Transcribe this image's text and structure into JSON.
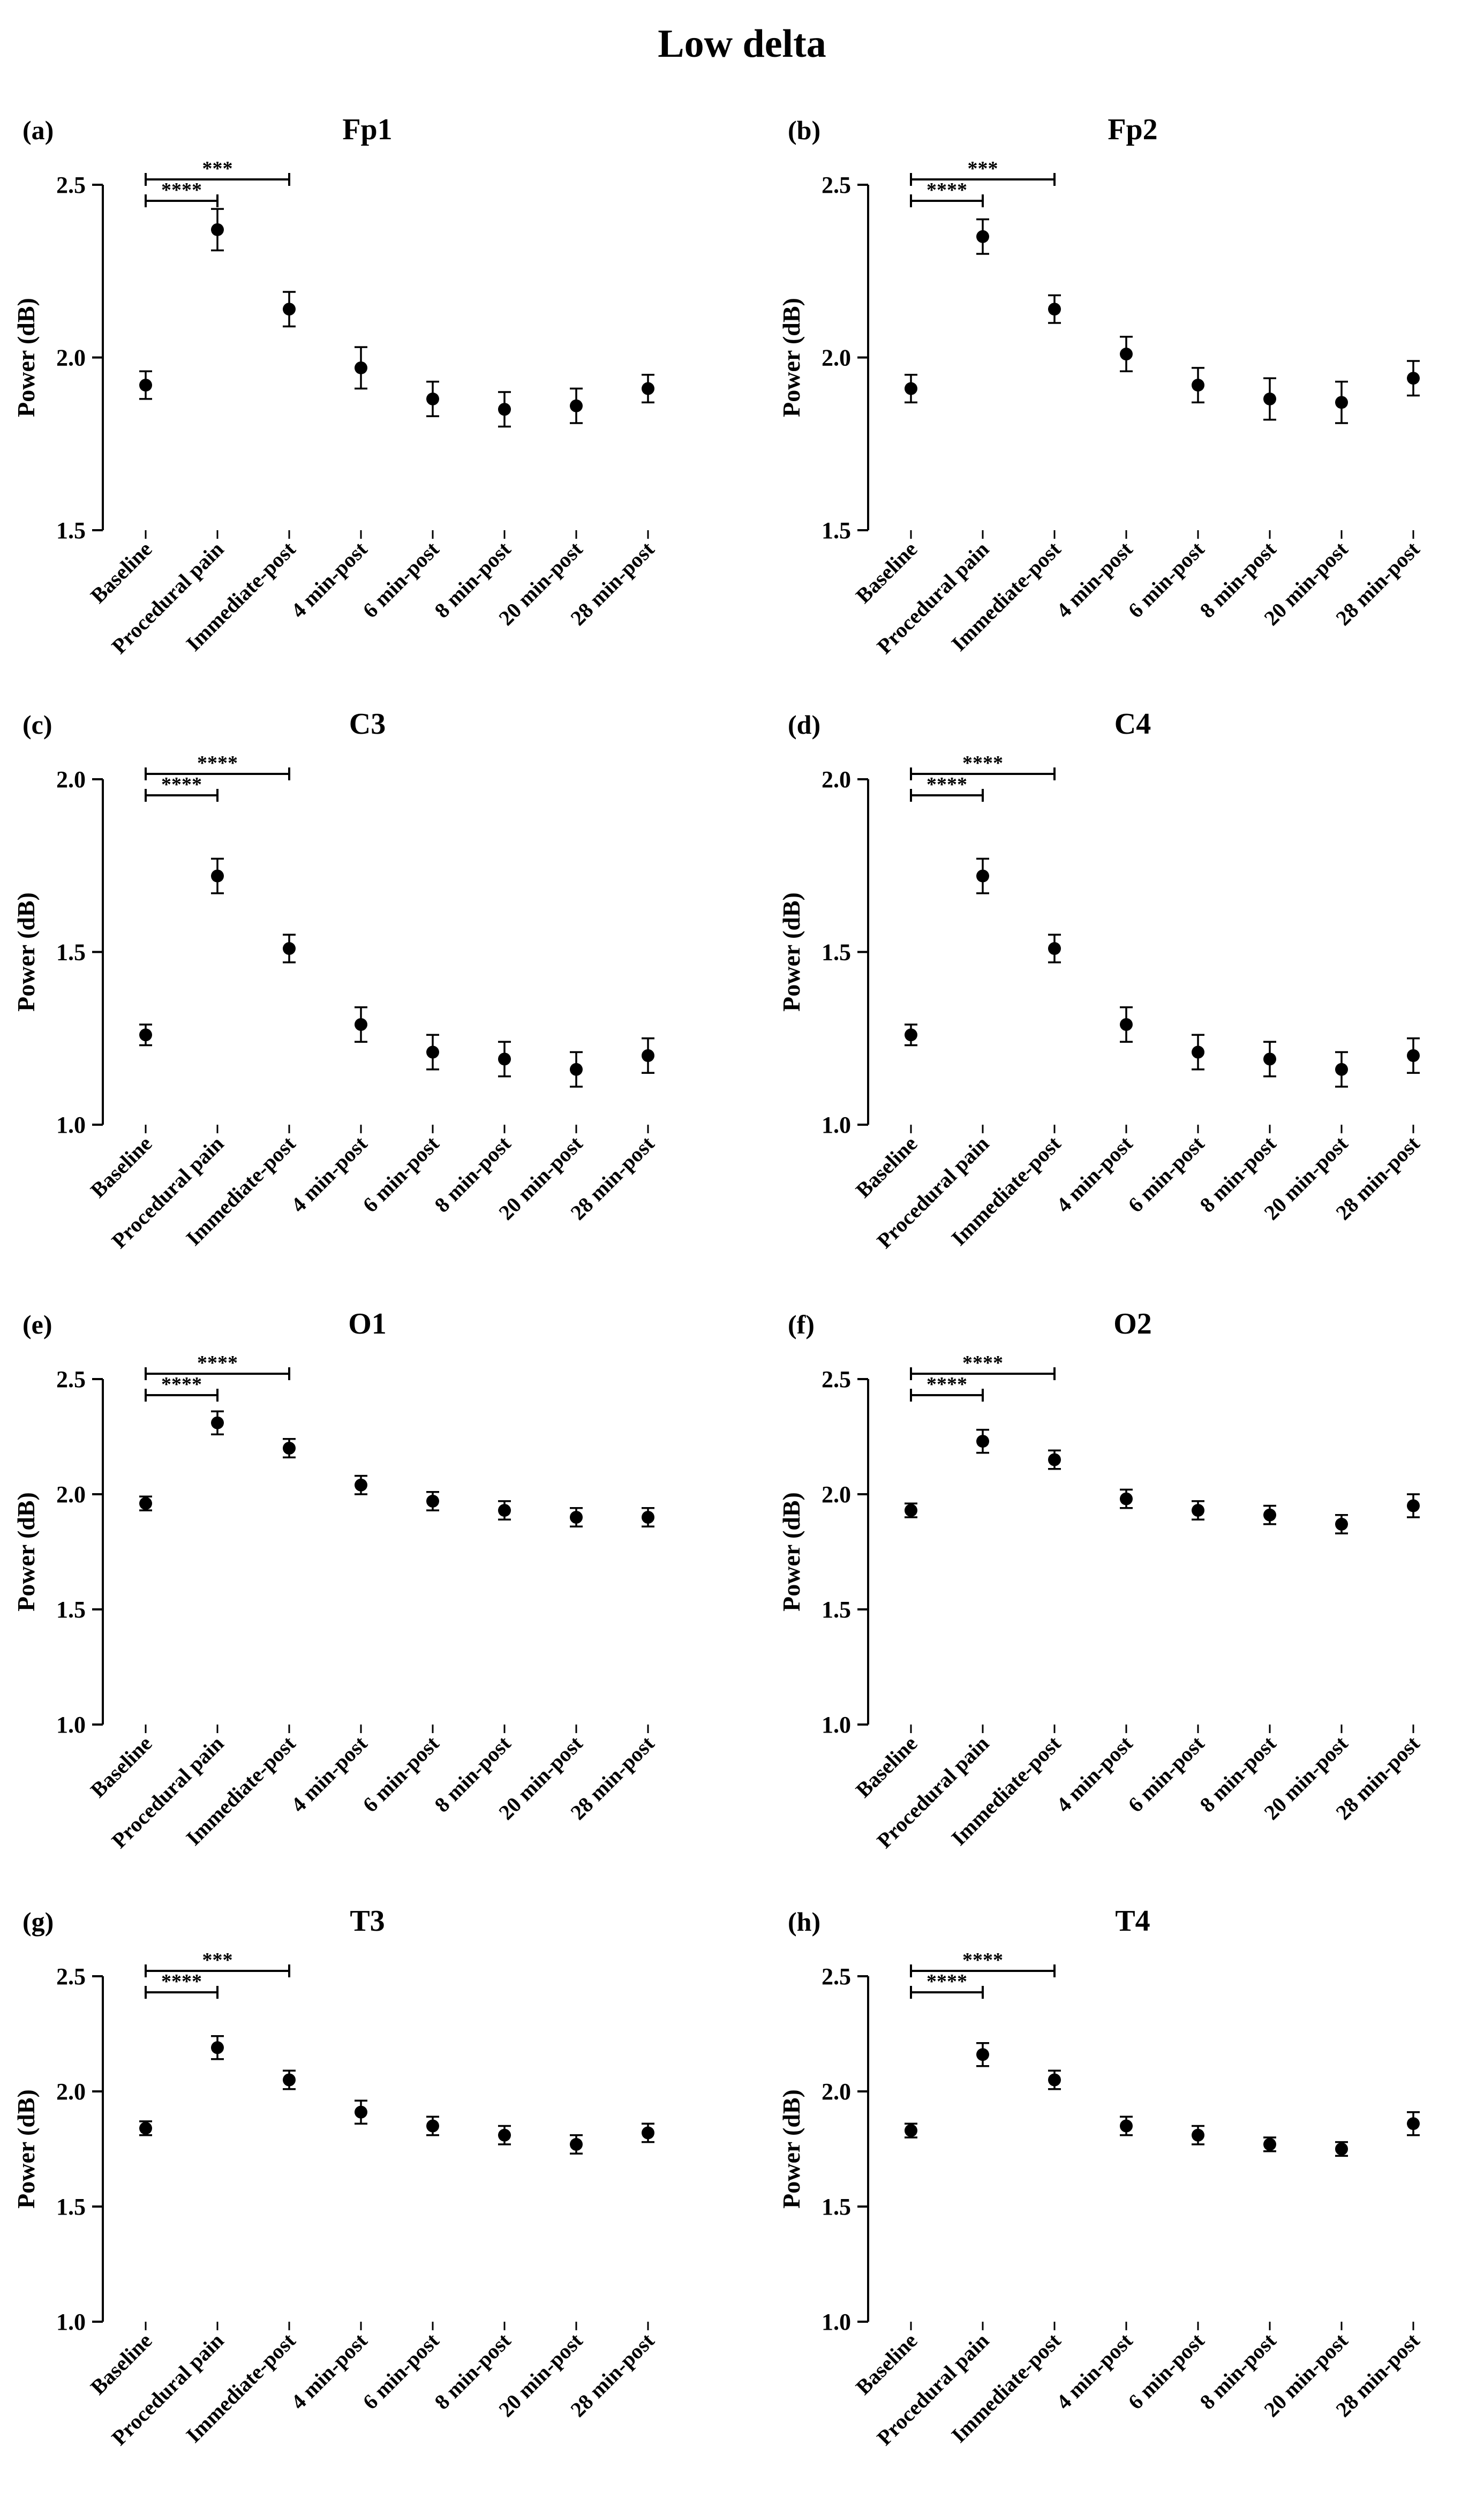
{
  "title": "Low delta",
  "chart_data": [
    {
      "type": "scatter",
      "panel_label": "(a)",
      "title": "Fp1",
      "ylabel": "Power (dB)",
      "xlabel": "",
      "ylim": [
        1.5,
        2.5
      ],
      "yticks": [
        "1.5",
        "2.0",
        "2.5"
      ],
      "categories": [
        "Baseline",
        "Procedural pain",
        "Immediate-post",
        "4 min-post",
        "6 min-post",
        "8 min-post",
        "20 min-post",
        "28 min-post"
      ],
      "values": [
        1.92,
        2.37,
        2.14,
        1.97,
        1.88,
        1.85,
        1.86,
        1.91
      ],
      "error": [
        0.04,
        0.06,
        0.05,
        0.06,
        0.05,
        0.05,
        0.05,
        0.04
      ],
      "significance": [
        {
          "from": 0,
          "to": 1,
          "label": "****"
        },
        {
          "from": 0,
          "to": 2,
          "label": "***"
        }
      ]
    },
    {
      "type": "scatter",
      "panel_label": "(b)",
      "title": "Fp2",
      "ylabel": "Power (dB)",
      "xlabel": "",
      "ylim": [
        1.5,
        2.5
      ],
      "yticks": [
        "1.5",
        "2.0",
        "2.5"
      ],
      "categories": [
        "Baseline",
        "Procedural pain",
        "Immediate-post",
        "4 min-post",
        "6 min-post",
        "8 min-post",
        "20 min-post",
        "28 min-post"
      ],
      "values": [
        1.91,
        2.35,
        2.14,
        2.01,
        1.92,
        1.88,
        1.87,
        1.94
      ],
      "error": [
        0.04,
        0.05,
        0.04,
        0.05,
        0.05,
        0.06,
        0.06,
        0.05
      ],
      "significance": [
        {
          "from": 0,
          "to": 1,
          "label": "****"
        },
        {
          "from": 0,
          "to": 2,
          "label": "***"
        }
      ]
    },
    {
      "type": "scatter",
      "panel_label": "(c)",
      "title": "C3",
      "ylabel": "Power (dB)",
      "xlabel": "",
      "ylim": [
        1.0,
        2.0
      ],
      "yticks": [
        "1.0",
        "1.5",
        "2.0"
      ],
      "categories": [
        "Baseline",
        "Procedural pain",
        "Immediate-post",
        "4 min-post",
        "6 min-post",
        "8 min-post",
        "20 min-post",
        "28 min-post"
      ],
      "values": [
        1.26,
        1.72,
        1.51,
        1.29,
        1.21,
        1.19,
        1.16,
        1.2
      ],
      "error": [
        0.03,
        0.05,
        0.04,
        0.05,
        0.05,
        0.05,
        0.05,
        0.05
      ],
      "significance": [
        {
          "from": 0,
          "to": 1,
          "label": "****"
        },
        {
          "from": 0,
          "to": 2,
          "label": "****"
        }
      ]
    },
    {
      "type": "scatter",
      "panel_label": "(d)",
      "title": "C4",
      "ylabel": "Power (dB)",
      "xlabel": "",
      "ylim": [
        1.0,
        2.0
      ],
      "yticks": [
        "1.0",
        "1.5",
        "2.0"
      ],
      "categories": [
        "Baseline",
        "Procedural pain",
        "Immediate-post",
        "4 min-post",
        "6 min-post",
        "8 min-post",
        "20 min-post",
        "28 min-post"
      ],
      "values": [
        1.26,
        1.72,
        1.51,
        1.29,
        1.21,
        1.19,
        1.16,
        1.2
      ],
      "error": [
        0.03,
        0.05,
        0.04,
        0.05,
        0.05,
        0.05,
        0.05,
        0.05
      ],
      "significance": [
        {
          "from": 0,
          "to": 1,
          "label": "****"
        },
        {
          "from": 0,
          "to": 2,
          "label": "****"
        }
      ]
    },
    {
      "type": "scatter",
      "panel_label": "(e)",
      "title": "O1",
      "ylabel": "Power (dB)",
      "xlabel": "",
      "ylim": [
        1.0,
        2.5
      ],
      "yticks": [
        "1.0",
        "1.5",
        "2.0",
        "2.5"
      ],
      "categories": [
        "Baseline",
        "Procedural pain",
        "Immediate-post",
        "4 min-post",
        "6 min-post",
        "8 min-post",
        "20 min-post",
        "28 min-post"
      ],
      "values": [
        1.96,
        2.31,
        2.2,
        2.04,
        1.97,
        1.93,
        1.9,
        1.9
      ],
      "error": [
        0.03,
        0.05,
        0.04,
        0.04,
        0.04,
        0.04,
        0.04,
        0.04
      ],
      "significance": [
        {
          "from": 0,
          "to": 1,
          "label": "****"
        },
        {
          "from": 0,
          "to": 2,
          "label": "****"
        }
      ]
    },
    {
      "type": "scatter",
      "panel_label": "(f)",
      "title": "O2",
      "ylabel": "Power (dB)",
      "xlabel": "",
      "ylim": [
        1.0,
        2.5
      ],
      "yticks": [
        "1.0",
        "1.5",
        "2.0",
        "2.5"
      ],
      "categories": [
        "Baseline",
        "Procedural pain",
        "Immediate-post",
        "4 min-post",
        "6 min-post",
        "8 min-post",
        "20 min-post",
        "28 min-post"
      ],
      "values": [
        1.93,
        2.23,
        2.15,
        1.98,
        1.93,
        1.91,
        1.87,
        1.95
      ],
      "error": [
        0.03,
        0.05,
        0.04,
        0.04,
        0.04,
        0.04,
        0.04,
        0.05
      ],
      "significance": [
        {
          "from": 0,
          "to": 1,
          "label": "****"
        },
        {
          "from": 0,
          "to": 2,
          "label": "****"
        }
      ]
    },
    {
      "type": "scatter",
      "panel_label": "(g)",
      "title": "T3",
      "ylabel": "Power (dB)",
      "xlabel": "",
      "ylim": [
        1.0,
        2.5
      ],
      "yticks": [
        "1.0",
        "1.5",
        "2.0",
        "2.5"
      ],
      "categories": [
        "Baseline",
        "Procedural pain",
        "Immediate-post",
        "4 min-post",
        "6 min-post",
        "8 min-post",
        "20 min-post",
        "28 min-post"
      ],
      "values": [
        1.84,
        2.19,
        2.05,
        1.91,
        1.85,
        1.81,
        1.77,
        1.82
      ],
      "error": [
        0.03,
        0.05,
        0.04,
        0.05,
        0.04,
        0.04,
        0.04,
        0.04
      ],
      "significance": [
        {
          "from": 0,
          "to": 1,
          "label": "****"
        },
        {
          "from": 0,
          "to": 2,
          "label": "***"
        }
      ]
    },
    {
      "type": "scatter",
      "panel_label": "(h)",
      "title": "T4",
      "ylabel": "Power (dB)",
      "xlabel": "",
      "ylim": [
        1.0,
        2.5
      ],
      "yticks": [
        "1.0",
        "1.5",
        "2.0",
        "2.5"
      ],
      "categories": [
        "Baseline",
        "Procedural pain",
        "Immediate-post",
        "4 min-post",
        "6 min-post",
        "8 min-post",
        "20 min-post",
        "28 min-post"
      ],
      "values": [
        1.83,
        2.16,
        2.05,
        1.85,
        1.81,
        1.77,
        1.75,
        1.86
      ],
      "error": [
        0.03,
        0.05,
        0.04,
        0.04,
        0.04,
        0.03,
        0.03,
        0.05
      ],
      "significance": [
        {
          "from": 0,
          "to": 1,
          "label": "****"
        },
        {
          "from": 0,
          "to": 2,
          "label": "****"
        }
      ]
    }
  ]
}
